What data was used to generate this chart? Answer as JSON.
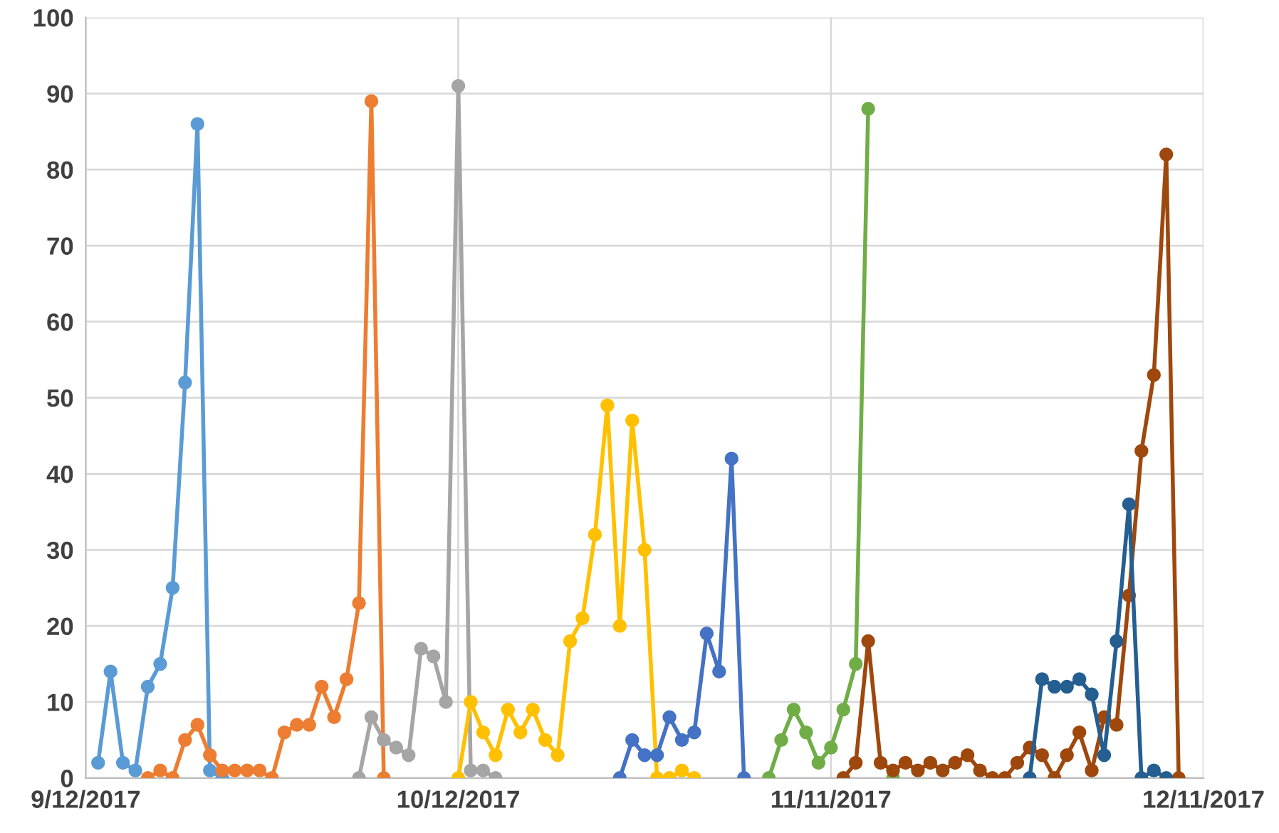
{
  "chart_data": {
    "type": "line",
    "xlim": [
      "2017-09-12",
      "2017-12-11"
    ],
    "xticks": [
      {
        "value": "2017-09-12",
        "label": "9/12/2017"
      },
      {
        "value": "2017-10-12",
        "label": "10/12/2017"
      },
      {
        "value": "2017-11-11",
        "label": "11/11/2017"
      },
      {
        "value": "2017-12-11",
        "label": "12/11/2017"
      }
    ],
    "ylim": [
      0,
      100
    ],
    "yticks": [
      0,
      10,
      20,
      30,
      40,
      50,
      60,
      70,
      80,
      90,
      100
    ],
    "grid": true,
    "marker": "circle",
    "line_style": "solid",
    "series": [
      {
        "color": "#5b9bd5",
        "x": [
          "2017-09-13",
          "2017-09-14",
          "2017-09-15",
          "2017-09-16",
          "2017-09-17",
          "2017-09-18",
          "2017-09-19",
          "2017-09-20",
          "2017-09-21",
          "2017-09-22",
          "2017-09-23"
        ],
        "values": [
          2,
          14,
          2,
          1,
          12,
          15,
          25,
          52,
          86,
          1,
          0
        ]
      },
      {
        "color": "#ed7d31",
        "x": [
          "2017-09-17",
          "2017-09-18",
          "2017-09-19",
          "2017-09-20",
          "2017-09-21",
          "2017-09-22",
          "2017-09-23",
          "2017-09-24",
          "2017-09-25",
          "2017-09-26",
          "2017-09-27",
          "2017-09-28",
          "2017-09-29",
          "2017-09-30",
          "2017-10-01",
          "2017-10-02",
          "2017-10-03",
          "2017-10-04",
          "2017-10-05",
          "2017-10-06"
        ],
        "values": [
          0,
          1,
          0,
          5,
          7,
          3,
          1,
          1,
          1,
          1,
          0,
          6,
          7,
          7,
          12,
          8,
          13,
          23,
          89,
          0
        ]
      },
      {
        "color": "#a5a5a5",
        "x": [
          "2017-10-04",
          "2017-10-05",
          "2017-10-06",
          "2017-10-07",
          "2017-10-08",
          "2017-10-09",
          "2017-10-10",
          "2017-10-11",
          "2017-10-12",
          "2017-10-13",
          "2017-10-14",
          "2017-10-15"
        ],
        "values": [
          0,
          8,
          5,
          4,
          3,
          17,
          16,
          10,
          91,
          1,
          1,
          0
        ]
      },
      {
        "color": "#ffc000",
        "x": [
          "2017-10-12",
          "2017-10-13",
          "2017-10-14",
          "2017-10-15",
          "2017-10-16",
          "2017-10-17",
          "2017-10-18",
          "2017-10-19",
          "2017-10-20",
          "2017-10-21",
          "2017-10-22",
          "2017-10-23",
          "2017-10-24",
          "2017-10-25",
          "2017-10-26",
          "2017-10-27",
          "2017-10-28",
          "2017-10-29",
          "2017-10-30",
          "2017-10-31"
        ],
        "values": [
          0,
          10,
          6,
          3,
          9,
          6,
          9,
          5,
          3,
          18,
          21,
          32,
          49,
          20,
          47,
          30,
          0,
          0,
          1,
          0
        ]
      },
      {
        "color": "#4472c4",
        "x": [
          "2017-10-25",
          "2017-10-26",
          "2017-10-27",
          "2017-10-28",
          "2017-10-29",
          "2017-10-30",
          "2017-10-31",
          "2017-11-01",
          "2017-11-02",
          "2017-11-03",
          "2017-11-04"
        ],
        "values": [
          0,
          5,
          3,
          3,
          8,
          5,
          6,
          19,
          14,
          42,
          0
        ]
      },
      {
        "color": "#70ad47",
        "x": [
          "2017-11-06",
          "2017-11-07",
          "2017-11-08",
          "2017-11-09",
          "2017-11-10",
          "2017-11-11",
          "2017-11-12",
          "2017-11-13",
          "2017-11-14",
          "2017-11-15",
          "2017-11-16"
        ],
        "values": [
          0,
          5,
          9,
          6,
          2,
          4,
          9,
          15,
          88,
          null,
          0
        ]
      },
      {
        "color": "#9e480e",
        "x": [
          "2017-11-12",
          "2017-11-13",
          "2017-11-14",
          "2017-11-15",
          "2017-11-16",
          "2017-11-17",
          "2017-11-18",
          "2017-11-19",
          "2017-11-20",
          "2017-11-21",
          "2017-11-22",
          "2017-11-23",
          "2017-11-24",
          "2017-11-25",
          "2017-11-26",
          "2017-11-27",
          "2017-11-28",
          "2017-11-29",
          "2017-11-30",
          "2017-12-01",
          "2017-12-02",
          "2017-12-03",
          "2017-12-04",
          "2017-12-05",
          "2017-12-06",
          "2017-12-07",
          "2017-12-08",
          "2017-12-09"
        ],
        "values": [
          0,
          2,
          18,
          2,
          1,
          2,
          1,
          2,
          1,
          2,
          3,
          1,
          0,
          0,
          2,
          4,
          3,
          0,
          3,
          6,
          1,
          8,
          7,
          24,
          43,
          53,
          82,
          0
        ]
      },
      {
        "color": "#255e91",
        "x": [
          "2017-11-27",
          "2017-11-28",
          "2017-11-29",
          "2017-11-30",
          "2017-12-01",
          "2017-12-02",
          "2017-12-03",
          "2017-12-04",
          "2017-12-05",
          "2017-12-06",
          "2017-12-07",
          "2017-12-08"
        ],
        "values": [
          0,
          13,
          12,
          12,
          13,
          11,
          3,
          18,
          36,
          0,
          1,
          0
        ]
      }
    ]
  }
}
